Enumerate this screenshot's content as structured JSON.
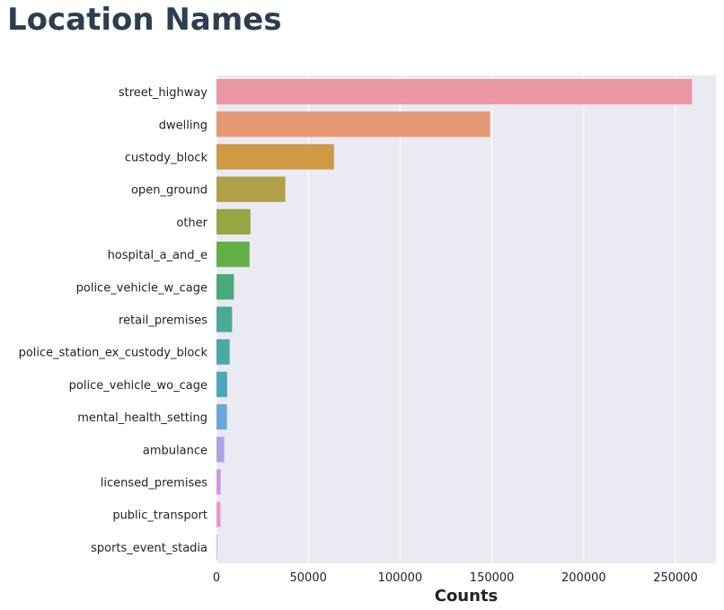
{
  "chart_data": {
    "type": "bar",
    "orientation": "horizontal",
    "title": "Location Names",
    "xlabel": "Counts",
    "ylabel": "",
    "xlim": [
      0,
      272000
    ],
    "xticks": [
      0,
      50000,
      100000,
      150000,
      200000,
      250000
    ],
    "grid": true,
    "categories": [
      "street_highway",
      "dwelling",
      "custody_block",
      "open_ground",
      "other",
      "hospital_a_and_e",
      "police_vehicle_w_cage",
      "retail_premises",
      "police_station_ex_custody_block",
      "police_vehicle_wo_cage",
      "mental_health_setting",
      "ambulance",
      "licensed_premises",
      "public_transport",
      "sports_event_stadia"
    ],
    "values": [
      259000,
      149000,
      64000,
      37500,
      18500,
      18000,
      9500,
      8500,
      7200,
      5800,
      5700,
      4200,
      2300,
      2200,
      300
    ],
    "colors": [
      "#ea96a3",
      "#e59673",
      "#cf9a45",
      "#b0a048",
      "#95a645",
      "#62af48",
      "#48a97a",
      "#49aa99",
      "#4ba7aa",
      "#4ca6bc",
      "#6aa7dc",
      "#aba5e7",
      "#d297e1",
      "#e896d0",
      "#e993b9"
    ]
  }
}
